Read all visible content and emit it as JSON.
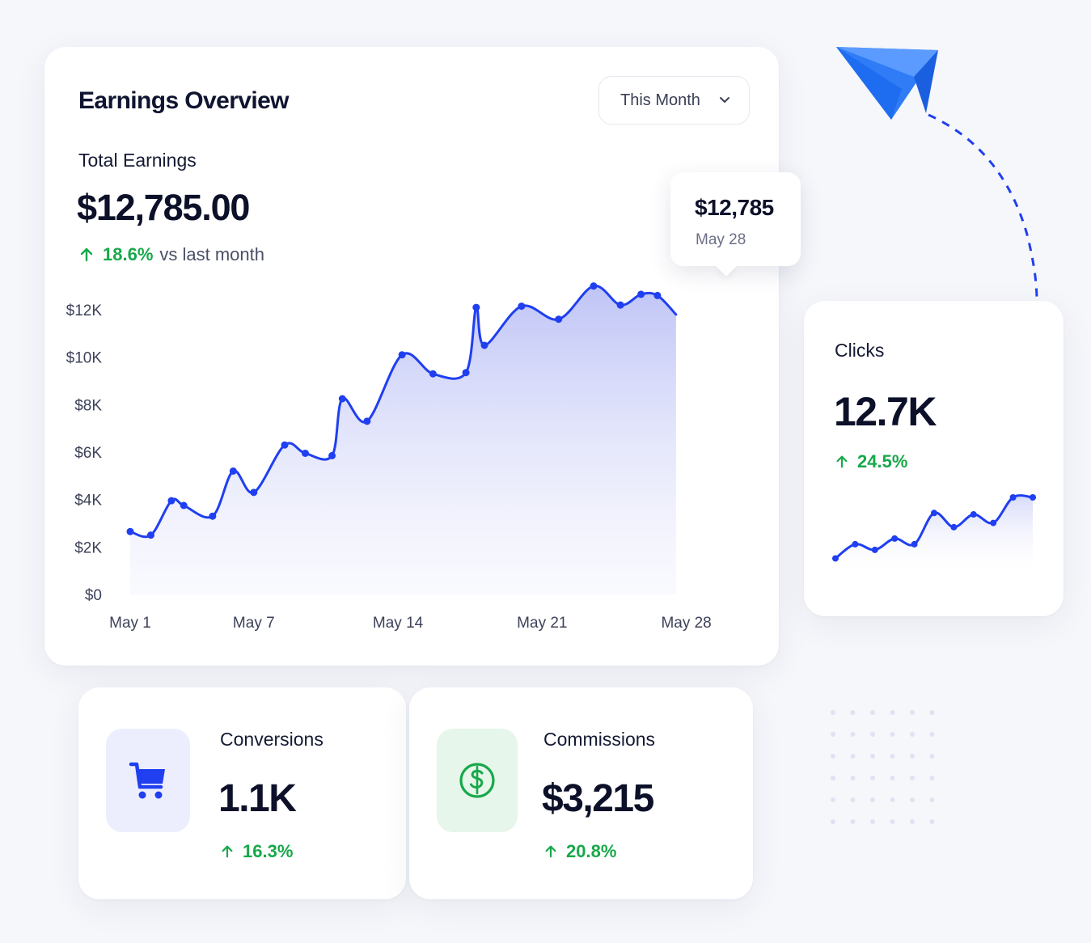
{
  "earnings": {
    "title": "Earnings Overview",
    "period_selected": "This Month",
    "total_label": "Total Earnings",
    "total_value": "$12,785.00",
    "delta_pct": "18.6%",
    "delta_text": "vs last month",
    "tooltip": {
      "value": "$12,785",
      "date": "May 28"
    }
  },
  "clicks": {
    "label": "Clicks",
    "value": "12.7K",
    "delta_pct": "24.5%"
  },
  "conversions": {
    "label": "Conversions",
    "value": "1.1K",
    "delta_pct": "16.3%",
    "icon": "cart-icon"
  },
  "commissions": {
    "label": "Commissions",
    "value": "$3,215",
    "delta_pct": "20.8%",
    "icon": "dollar-coin-icon"
  },
  "colors": {
    "accent": "#1f3ff0",
    "positive": "#17a84a",
    "plane": "#2f7cf6"
  },
  "chart_data": [
    {
      "type": "area",
      "title": "",
      "xlabel": "",
      "ylabel": "",
      "x_tick_labels": [
        "May 1",
        "May 7",
        "May 14",
        "May 21",
        "May 28"
      ],
      "y_tick_labels": [
        "$0",
        "$2K",
        "$4K",
        "$6K",
        "$8K",
        "$10K",
        "$12K"
      ],
      "ylim": [
        0,
        12000
      ],
      "xlim": [
        1,
        31
      ],
      "grid": false,
      "x": [
        1,
        2,
        3,
        3.6,
        5,
        6,
        7,
        8.5,
        9.5,
        10.8,
        11.3,
        12.5,
        14.2,
        15.7,
        17.3,
        17.8,
        18.2,
        20,
        21.8,
        23.5,
        24.8,
        25.8,
        26.6,
        27.5
      ],
      "values": [
        2650,
        2500,
        3950,
        3750,
        3300,
        5200,
        4300,
        6300,
        5950,
        5850,
        8250,
        7300,
        10100,
        9300,
        9350,
        12100,
        10500,
        12150,
        11600,
        13000,
        12200,
        12650,
        12600,
        11800
      ]
    },
    {
      "type": "line",
      "title": "",
      "xlabel": "",
      "ylabel": "",
      "x": [
        1,
        2,
        3,
        4,
        5,
        6,
        7,
        8,
        9,
        10,
        11
      ],
      "values": [
        1.0,
        2.0,
        1.6,
        2.4,
        2.0,
        4.2,
        3.2,
        4.1,
        3.5,
        5.3,
        5.3
      ],
      "ylim": [
        0,
        6
      ]
    }
  ]
}
